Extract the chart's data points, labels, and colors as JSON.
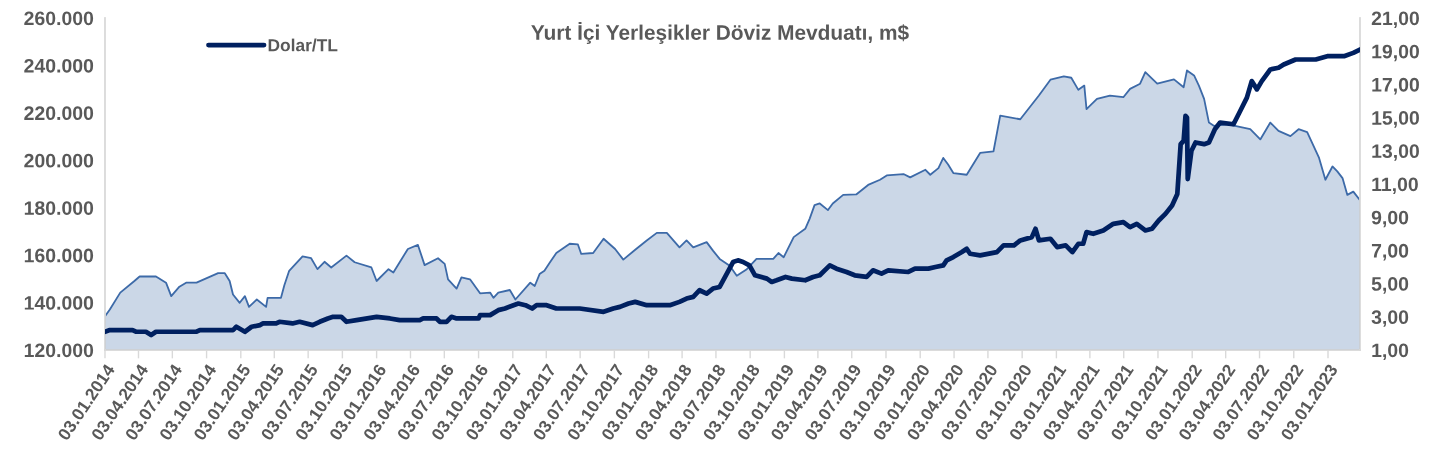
{
  "chart_data": {
    "type": "area",
    "title": "Yurt İçi Yerleşikler Döviz Mevduatı, m$",
    "legend": "top left",
    "xlim": [
      "2014-01-03",
      "2023-03-30"
    ],
    "xticks": [
      {
        "value": "2014-01-03",
        "label": "03.01.2014"
      },
      {
        "value": "2014-04-03",
        "label": "03.04.2014"
      },
      {
        "value": "2014-07-03",
        "label": "03.07.2014"
      },
      {
        "value": "2014-10-03",
        "label": "03.10.2014"
      },
      {
        "value": "2015-01-03",
        "label": "03.01.2015"
      },
      {
        "value": "2015-04-03",
        "label": "03.04.2015"
      },
      {
        "value": "2015-07-03",
        "label": "03.07.2015"
      },
      {
        "value": "2015-10-03",
        "label": "03.10.2015"
      },
      {
        "value": "2016-01-03",
        "label": "03.01.2016"
      },
      {
        "value": "2016-04-03",
        "label": "03.04.2016"
      },
      {
        "value": "2016-07-03",
        "label": "03.07.2016"
      },
      {
        "value": "2016-10-03",
        "label": "03.10.2016"
      },
      {
        "value": "2017-01-03",
        "label": "03.01.2017"
      },
      {
        "value": "2017-04-03",
        "label": "03.04.2017"
      },
      {
        "value": "2017-07-03",
        "label": "03.07.2017"
      },
      {
        "value": "2017-10-03",
        "label": "03.10.2017"
      },
      {
        "value": "2018-01-03",
        "label": "03.01.2018"
      },
      {
        "value": "2018-04-03",
        "label": "03.04.2018"
      },
      {
        "value": "2018-07-03",
        "label": "03.07.2018"
      },
      {
        "value": "2018-10-03",
        "label": "03.10.2018"
      },
      {
        "value": "2019-01-03",
        "label": "03.01.2019"
      },
      {
        "value": "2019-04-03",
        "label": "03.04.2019"
      },
      {
        "value": "2019-07-03",
        "label": "03.07.2019"
      },
      {
        "value": "2019-10-03",
        "label": "03.10.2019"
      },
      {
        "value": "2020-01-03",
        "label": "03.01.2020"
      },
      {
        "value": "2020-04-03",
        "label": "03.04.2020"
      },
      {
        "value": "2020-07-03",
        "label": "03.07.2020"
      },
      {
        "value": "2020-10-03",
        "label": "03.10.2020"
      },
      {
        "value": "2021-01-03",
        "label": "03.01.2021"
      },
      {
        "value": "2021-04-03",
        "label": "03.04.2021"
      },
      {
        "value": "2021-07-03",
        "label": "03.07.2021"
      },
      {
        "value": "2021-10-03",
        "label": "03.10.2021"
      },
      {
        "value": "2022-01-03",
        "label": "03.01.2022"
      },
      {
        "value": "2022-04-03",
        "label": "03.04.2022"
      },
      {
        "value": "2022-07-03",
        "label": "03.07.2022"
      },
      {
        "value": "2022-10-03",
        "label": "03.10.2022"
      },
      {
        "value": "2023-01-03",
        "label": "03.01.2023"
      }
    ],
    "ylim": [
      120000,
      260000
    ],
    "yticks": [
      {
        "value": 120000,
        "label": "120.000"
      },
      {
        "value": 140000,
        "label": "140.000"
      },
      {
        "value": 160000,
        "label": "160.000"
      },
      {
        "value": 180000,
        "label": "180.000"
      },
      {
        "value": 200000,
        "label": "200.000"
      },
      {
        "value": 220000,
        "label": "220.000"
      },
      {
        "value": 240000,
        "label": "240.000"
      },
      {
        "value": 260000,
        "label": "260.000"
      }
    ],
    "y2lim": [
      1,
      21
    ],
    "y2ticks": [
      {
        "value": 1,
        "label": "1,00"
      },
      {
        "value": 3,
        "label": "3,00"
      },
      {
        "value": 5,
        "label": "5,00"
      },
      {
        "value": 7,
        "label": "7,00"
      },
      {
        "value": 9,
        "label": "9,00"
      },
      {
        "value": 11,
        "label": "11,00"
      },
      {
        "value": 13,
        "label": "13,00"
      },
      {
        "value": 15,
        "label": "15,00"
      },
      {
        "value": 17,
        "label": "17,00"
      },
      {
        "value": 19,
        "label": "19,00"
      },
      {
        "value": 21,
        "label": "21,00"
      }
    ],
    "series": [
      {
        "color": "#3d6aa8",
        "x": [
          "2014-01-03",
          "2014-01-16",
          "2014-02-13",
          "2014-03-23",
          "2014-04-06",
          "2014-05-20",
          "2014-06-16",
          "2014-06-30",
          "2014-07-22",
          "2014-08-09",
          "2014-09-06",
          "2014-11-03",
          "2014-11-21",
          "2014-12-04",
          "2014-12-13",
          "2014-12-31",
          "2015-01-14",
          "2015-01-25",
          "2015-02-15",
          "2015-03-12",
          "2015-03-16",
          "2015-04-21",
          "2015-04-30",
          "2015-05-13",
          "2015-06-18",
          "2015-07-11",
          "2015-07-28",
          "2015-08-16",
          "2015-09-03",
          "2015-10-14",
          "2015-11-05",
          "2015-12-20",
          "2016-01-03",
          "2016-02-04",
          "2016-02-17",
          "2016-03-05",
          "2016-03-27",
          "2016-04-23",
          "2016-05-11",
          "2016-06-16",
          "2016-07-04",
          "2016-07-13",
          "2016-08-05",
          "2016-08-18",
          "2016-09-10",
          "2016-10-07",
          "2016-11-03",
          "2016-11-12",
          "2016-11-25",
          "2016-12-26",
          "2017-01-10",
          "2017-02-19",
          "2017-03-03",
          "2017-03-16",
          "2017-03-29",
          "2017-04-13",
          "2017-04-30",
          "2017-06-05",
          "2017-06-27",
          "2017-07-06",
          "2017-08-07",
          "2017-09-04",
          "2017-10-05",
          "2017-10-27",
          "2017-11-28",
          "2017-12-29",
          "2018-01-25",
          "2018-02-21",
          "2018-03-27",
          "2018-04-15",
          "2018-05-03",
          "2018-06-08",
          "2018-06-25",
          "2018-07-13",
          "2018-08-09",
          "2018-08-28",
          "2018-09-24",
          "2018-10-20",
          "2018-12-04",
          "2018-12-18",
          "2019-01-01",
          "2019-01-28",
          "2019-02-28",
          "2019-03-12",
          "2019-03-25",
          "2019-04-08",
          "2019-04-30",
          "2019-05-13",
          "2019-06-10",
          "2019-07-15",
          "2019-08-16",
          "2019-09-17",
          "2019-10-05",
          "2019-11-19",
          "2019-12-07",
          "2020-01-17",
          "2020-01-30",
          "2020-02-21",
          "2020-03-05",
          "2020-03-18",
          "2020-04-01",
          "2020-05-07",
          "2020-06-12",
          "2020-07-18",
          "2020-08-05",
          "2020-09-28",
          "2020-11-17",
          "2020-12-18",
          "2021-01-23",
          "2021-02-12",
          "2021-03-03",
          "2021-03-19",
          "2021-03-25",
          "2021-04-22",
          "2021-05-27",
          "2021-07-02",
          "2021-07-20",
          "2021-08-16",
          "2021-08-30",
          "2021-10-01",
          "2021-11-15",
          "2021-12-11",
          "2021-12-20",
          "2022-01-08",
          "2022-01-21",
          "2022-02-04",
          "2022-02-17",
          "2022-03-03",
          "2022-04-06",
          "2022-06-08",
          "2022-07-05",
          "2022-08-01",
          "2022-08-23",
          "2022-09-24",
          "2022-10-16",
          "2022-11-08",
          "2022-12-10",
          "2022-12-27",
          "2023-01-15",
          "2023-01-28",
          "2023-02-11",
          "2023-02-24",
          "2023-03-12",
          "2023-03-30"
        ],
        "values": [
          134200,
          137100,
          144200,
          149100,
          151000,
          151000,
          148400,
          142700,
          146700,
          148400,
          148400,
          152400,
          152400,
          149100,
          143400,
          139900,
          142700,
          138200,
          141300,
          138200,
          142000,
          142000,
          147300,
          153400,
          159500,
          158700,
          154100,
          157200,
          154800,
          159800,
          157000,
          154800,
          149100,
          154100,
          152700,
          157000,
          162600,
          164300,
          155800,
          158700,
          156300,
          149800,
          145900,
          150600,
          149800,
          143900,
          144200,
          142000,
          144200,
          145300,
          141300,
          148400,
          147000,
          152000,
          153400,
          157000,
          160900,
          164800,
          164500,
          160500,
          160900,
          166900,
          162600,
          158100,
          162300,
          166200,
          169400,
          169400,
          163300,
          166200,
          163300,
          165500,
          161900,
          158400,
          155500,
          151300,
          154100,
          158400,
          158400,
          160900,
          159100,
          167600,
          171100,
          175400,
          181100,
          181800,
          179000,
          181800,
          185400,
          185600,
          189600,
          191800,
          193600,
          194200,
          192800,
          196000,
          193900,
          196700,
          201000,
          198200,
          194600,
          193900,
          203100,
          203800,
          218800,
          217300,
          227300,
          234000,
          235400,
          234800,
          229700,
          231500,
          221600,
          225900,
          227300,
          226600,
          230100,
          232300,
          237200,
          232300,
          234100,
          230800,
          237900,
          235800,
          231500,
          225900,
          215900,
          214500,
          215200,
          213100,
          208800,
          215900,
          212400,
          210200,
          213100,
          211900,
          201000,
          191800,
          197400,
          195300,
          192500,
          185400,
          186800,
          183200
        ]
      },
      {
        "type": "line",
        "name": "Dolar/TL",
        "color": "#002060",
        "axis": "y2",
        "x": [
          "2014-01-03",
          "2014-01-16",
          "2014-03-18",
          "2014-03-27",
          "2014-04-23",
          "2014-05-07",
          "2014-05-20",
          "2014-09-06",
          "2014-09-15",
          "2014-12-13",
          "2014-12-22",
          "2015-01-14",
          "2015-02-01",
          "2015-02-24",
          "2015-03-03",
          "2015-04-08",
          "2015-04-17",
          "2015-05-22",
          "2015-06-10",
          "2015-07-15",
          "2015-08-03",
          "2015-08-25",
          "2015-09-08",
          "2015-09-30",
          "2015-10-14",
          "2015-11-10",
          "2016-01-03",
          "2016-02-08",
          "2016-03-05",
          "2016-04-28",
          "2016-05-07",
          "2016-06-12",
          "2016-06-21",
          "2016-07-09",
          "2016-07-22",
          "2016-08-05",
          "2016-10-03",
          "2016-10-07",
          "2016-11-03",
          "2016-11-25",
          "2016-12-13",
          "2017-01-05",
          "2017-01-18",
          "2017-02-06",
          "2017-02-24",
          "2017-03-08",
          "2017-04-04",
          "2017-04-30",
          "2017-07-02",
          "2017-09-04",
          "2017-09-30",
          "2017-10-18",
          "2017-11-10",
          "2017-11-28",
          "2017-12-29",
          "2018-03-01",
          "2018-03-27",
          "2018-04-15",
          "2018-05-03",
          "2018-05-20",
          "2018-06-08",
          "2018-06-25",
          "2018-07-13",
          "2018-08-18",
          "2018-08-31",
          "2018-09-14",
          "2018-10-01",
          "2018-10-16",
          "2018-11-17",
          "2018-11-30",
          "2018-12-13",
          "2019-01-06",
          "2019-01-23",
          "2019-02-28",
          "2019-03-21",
          "2019-04-08",
          "2019-05-05",
          "2019-05-23",
          "2019-06-19",
          "2019-07-11",
          "2019-08-12",
          "2019-08-29",
          "2019-09-21",
          "2019-10-09",
          "2019-12-02",
          "2019-12-20",
          "2020-01-25",
          "2020-02-13",
          "2020-03-05",
          "2020-03-14",
          "2020-04-01",
          "2020-04-24",
          "2020-05-07",
          "2020-05-16",
          "2020-06-12",
          "2020-07-27",
          "2020-08-14",
          "2020-09-11",
          "2020-09-28",
          "2020-10-29",
          "2020-11-08",
          "2020-11-17",
          "2020-12-18",
          "2021-01-05",
          "2021-01-28",
          "2021-02-15",
          "2021-03-03",
          "2021-03-16",
          "2021-03-25",
          "2021-04-12",
          "2021-05-09",
          "2021-06-05",
          "2021-07-02",
          "2021-07-20",
          "2021-08-07",
          "2021-08-30",
          "2021-09-17",
          "2021-10-05",
          "2021-10-23",
          "2021-11-10",
          "2021-11-24",
          "2021-12-03",
          "2021-12-11",
          "2021-12-16",
          "2021-12-20",
          "2021-12-22",
          "2022-01-01",
          "2022-01-12",
          "2022-02-04",
          "2022-02-17",
          "2022-03-05",
          "2022-03-19",
          "2022-04-24",
          "2022-05-12",
          "2022-05-30",
          "2022-06-12",
          "2022-06-26",
          "2022-07-09",
          "2022-08-01",
          "2022-08-23",
          "2022-09-06",
          "2022-10-08",
          "2022-12-01",
          "2023-01-01",
          "2023-02-15",
          "2023-03-12",
          "2023-03-30"
        ],
        "values": [
          2.1,
          2.2,
          2.2,
          2.1,
          2.1,
          1.9,
          2.1,
          2.1,
          2.2,
          2.2,
          2.4,
          2.1,
          2.4,
          2.5,
          2.6,
          2.6,
          2.7,
          2.6,
          2.7,
          2.5,
          2.7,
          2.9,
          3.0,
          3.0,
          2.7,
          2.8,
          3.0,
          2.9,
          2.8,
          2.8,
          2.9,
          2.9,
          2.7,
          2.7,
          3.0,
          2.9,
          2.9,
          3.1,
          3.1,
          3.4,
          3.5,
          3.7,
          3.8,
          3.7,
          3.5,
          3.7,
          3.7,
          3.5,
          3.5,
          3.3,
          3.5,
          3.6,
          3.8,
          3.9,
          3.7,
          3.7,
          3.9,
          4.1,
          4.2,
          4.6,
          4.4,
          4.7,
          4.8,
          6.3,
          6.4,
          6.3,
          6.1,
          5.5,
          5.3,
          5.1,
          5.2,
          5.4,
          5.3,
          5.2,
          5.4,
          5.5,
          6.1,
          5.9,
          5.7,
          5.5,
          5.4,
          5.8,
          5.6,
          5.8,
          5.7,
          5.9,
          5.9,
          6.0,
          6.1,
          6.4,
          6.6,
          6.9,
          7.1,
          6.8,
          6.7,
          6.9,
          7.3,
          7.3,
          7.6,
          7.8,
          8.3,
          7.6,
          7.7,
          7.2,
          7.3,
          6.9,
          7.4,
          7.4,
          8.1,
          8.0,
          8.2,
          8.6,
          8.7,
          8.4,
          8.6,
          8.2,
          8.3,
          8.8,
          9.2,
          9.7,
          10.4,
          13.4,
          13.6,
          15.1,
          15.0,
          11.3,
          13.0,
          13.5,
          13.4,
          13.5,
          14.3,
          14.7,
          14.6,
          15.4,
          16.2,
          17.2,
          16.7,
          17.2,
          17.9,
          18.0,
          18.2,
          18.5,
          18.5,
          18.7,
          18.7,
          18.9,
          19.1
        ]
      }
    ]
  }
}
